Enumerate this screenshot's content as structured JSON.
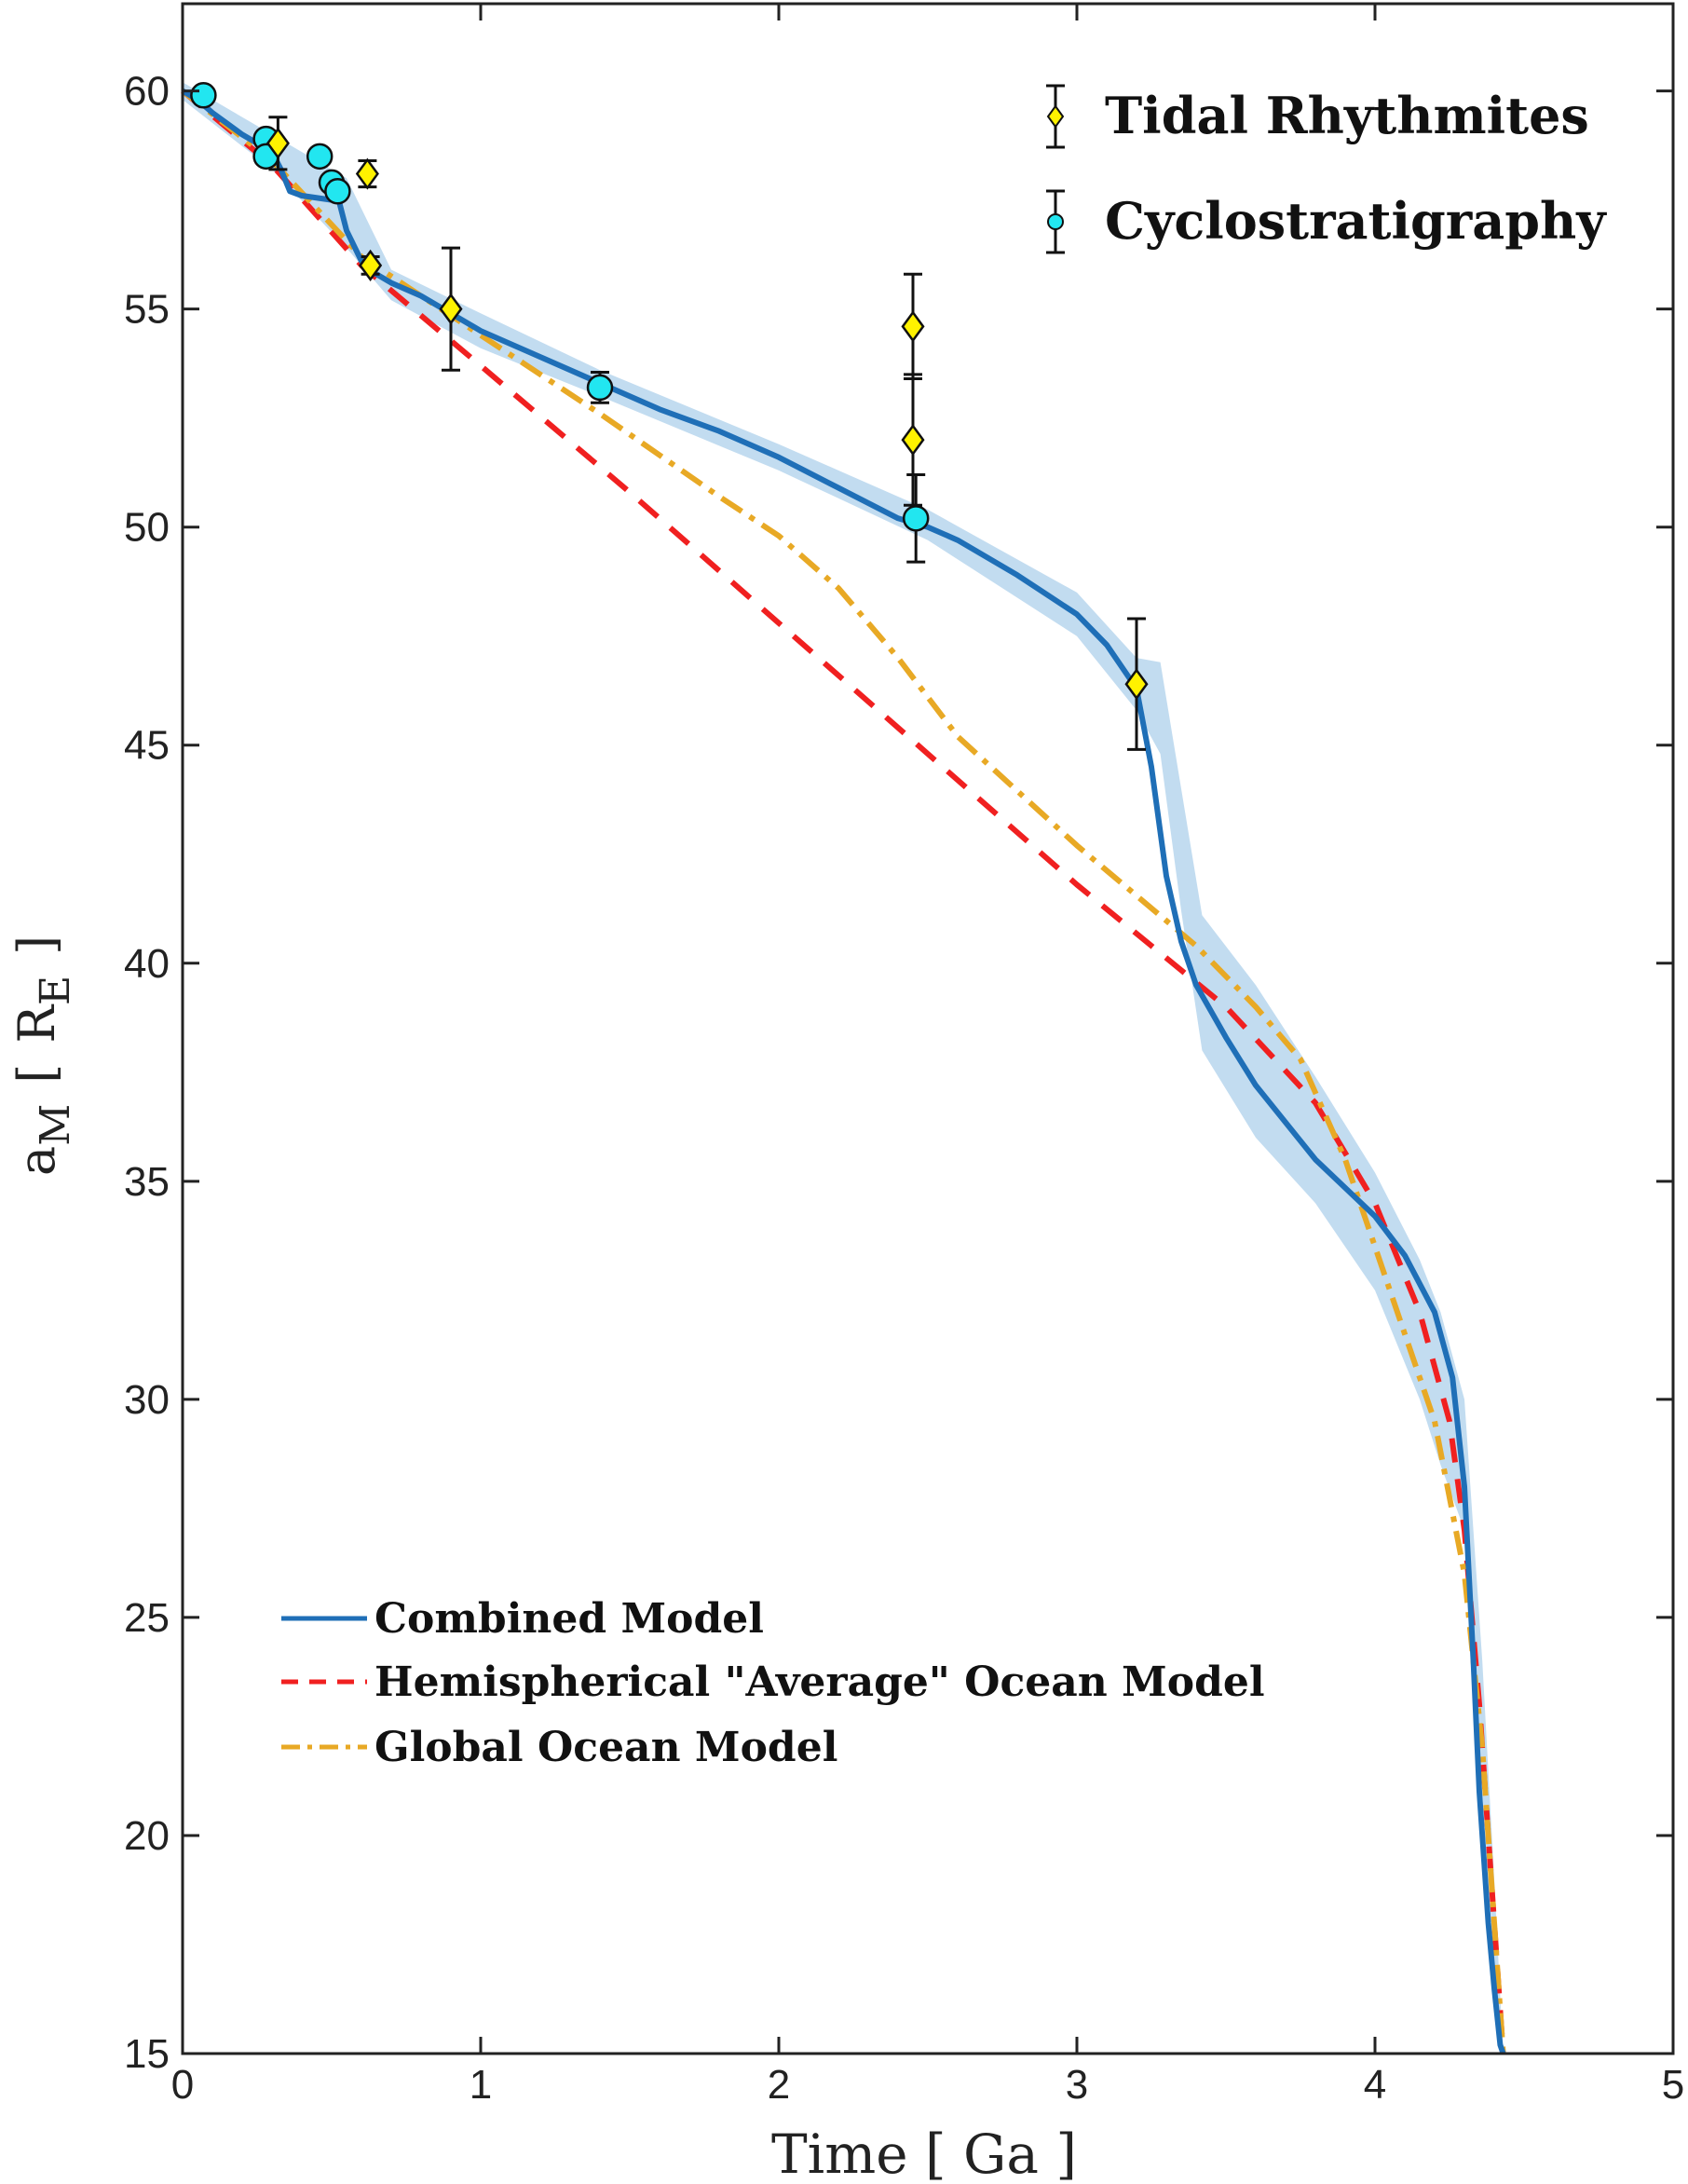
{
  "chart_data": {
    "type": "line",
    "title": "",
    "xlabel": "Time [ Ga ]",
    "ylabel_parts": {
      "a": "a",
      "a_sub": "M",
      "bracket_open": "[",
      "r": "R",
      "r_sub": "E",
      "bracket_close": "]"
    },
    "xlim": [
      0,
      5
    ],
    "ylim": [
      15,
      62
    ],
    "x_ticks": [
      0,
      1,
      2,
      3,
      4,
      5
    ],
    "y_ticks": [
      15,
      20,
      25,
      30,
      35,
      40,
      45,
      50,
      55,
      60
    ],
    "colors": {
      "combined": "#1f6fb7",
      "band": "#c2dcf0",
      "hemispherical": "#f02020",
      "global": "#e8a925",
      "tidal": "#fff200",
      "cyclo": "#22e6f0"
    },
    "legend_top": [
      {
        "label": "Tidal Rhythmites",
        "marker": "diamond"
      },
      {
        "label": "Cyclostratigraphy",
        "marker": "circle"
      }
    ],
    "legend_bottom": [
      {
        "label": "Combined Model",
        "style": "solid"
      },
      {
        "label": "Hemispherical \"Average\" Ocean Model",
        "style": "dashed"
      },
      {
        "label": "Global Ocean Model",
        "style": "dashdot"
      }
    ],
    "series": [
      {
        "name": "Combined Model",
        "style": "solid",
        "x": [
          0,
          0.05,
          0.1,
          0.2,
          0.3,
          0.33,
          0.36,
          0.4,
          0.5,
          0.52,
          0.55,
          0.6,
          0.65,
          0.7,
          0.8,
          1.0,
          1.2,
          1.4,
          1.6,
          1.8,
          2.0,
          2.2,
          2.4,
          2.5,
          2.6,
          2.8,
          3.0,
          3.1,
          3.2,
          3.25,
          3.3,
          3.35,
          3.4,
          3.5,
          3.6,
          3.8,
          4.0,
          4.1,
          4.2,
          4.26,
          4.3,
          4.33,
          4.35,
          4.38,
          4.4,
          4.42,
          4.43
        ],
        "y": [
          60,
          59.8,
          59.5,
          59,
          58.6,
          58.2,
          57.7,
          57.6,
          57.5,
          57.6,
          56.8,
          56.1,
          55.8,
          55.6,
          55.3,
          54.5,
          53.9,
          53.3,
          52.7,
          52.2,
          51.6,
          50.9,
          50.2,
          50,
          49.7,
          48.9,
          48,
          47.3,
          46.3,
          44.5,
          42,
          40.5,
          39.5,
          38.3,
          37.2,
          35.5,
          34.2,
          33.3,
          32,
          30.5,
          28,
          24,
          21,
          18,
          16.5,
          15.2,
          15
        ]
      },
      {
        "name": "Hemispherical \"Average\" Ocean Model",
        "style": "dashed",
        "x": [
          0,
          0.3,
          0.6,
          1.0,
          1.5,
          2.0,
          2.5,
          3.0,
          3.5,
          3.8,
          4.0,
          4.15,
          4.25,
          4.3,
          4.35,
          4.39,
          4.42,
          4.43
        ],
        "y": [
          60,
          58.3,
          56,
          53.7,
          50.8,
          47.8,
          44.8,
          41.8,
          39,
          36.8,
          34.5,
          32,
          29.5,
          27,
          23,
          19,
          16,
          15
        ]
      },
      {
        "name": "Global Ocean Model",
        "style": "dashdot",
        "x": [
          0,
          0.3,
          0.6,
          1.0,
          1.4,
          1.8,
          2.0,
          2.2,
          2.4,
          2.6,
          3.0,
          3.4,
          3.6,
          3.75,
          3.9,
          4.0,
          4.1,
          4.2,
          4.3,
          4.36,
          4.4,
          4.43
        ],
        "y": [
          60,
          58.4,
          56.2,
          54.4,
          52.6,
          50.7,
          49.8,
          48.6,
          47,
          45.2,
          42.7,
          40.4,
          39,
          37.8,
          35.5,
          33.5,
          31.5,
          29.5,
          26,
          22,
          18,
          15
        ]
      }
    ],
    "band": {
      "x": [
        0,
        0.3,
        0.55,
        0.7,
        1.0,
        1.4,
        2.0,
        2.5,
        3.0,
        3.2,
        3.28,
        3.35,
        3.42,
        3.6,
        3.8,
        4.0,
        4.15,
        4.22,
        4.3,
        4.33,
        4.36,
        4.4,
        4.43
      ],
      "upper": [
        60.2,
        59,
        58,
        55.9,
        54.9,
        53.6,
        51.9,
        50.4,
        48.5,
        47,
        46.9,
        44,
        41.1,
        39.5,
        37.4,
        35.2,
        33.2,
        32,
        30,
        27,
        24,
        19,
        15
      ],
      "lower": [
        59.8,
        58.2,
        56.4,
        55.2,
        54.1,
        53,
        51.3,
        49.7,
        47.5,
        45.8,
        44.8,
        41.2,
        38,
        36,
        34.5,
        32.5,
        30,
        28.5,
        27,
        24,
        21,
        17,
        15
      ]
    },
    "tidal_rhythmites": [
      {
        "x": 0.32,
        "y": 58.8,
        "err": 0.6
      },
      {
        "x": 0.62,
        "y": 58.1,
        "err": 0.3
      },
      {
        "x": 0.63,
        "y": 56,
        "err": 0.2
      },
      {
        "x": 0.9,
        "y": 55,
        "err": 1.4
      },
      {
        "x": 2.45,
        "y": 54.6,
        "err": 1.2
      },
      {
        "x": 2.45,
        "y": 52,
        "err": 1.5
      },
      {
        "x": 3.2,
        "y": 46.4,
        "err": 1.5
      }
    ],
    "cyclostratigraphy": [
      {
        "x": 0.07,
        "y": 59.9,
        "err": 0.15
      },
      {
        "x": 0.28,
        "y": 58.9,
        "err": 0.15
      },
      {
        "x": 0.28,
        "y": 58.5,
        "err": 0.15
      },
      {
        "x": 0.46,
        "y": 58.5,
        "err": 0.15
      },
      {
        "x": 0.5,
        "y": 57.9,
        "err": 0.15
      },
      {
        "x": 0.52,
        "y": 57.7,
        "err": 0.15
      },
      {
        "x": 1.4,
        "y": 53.2,
        "err": 0.35
      },
      {
        "x": 2.46,
        "y": 50.2,
        "err": 1.0
      }
    ]
  }
}
